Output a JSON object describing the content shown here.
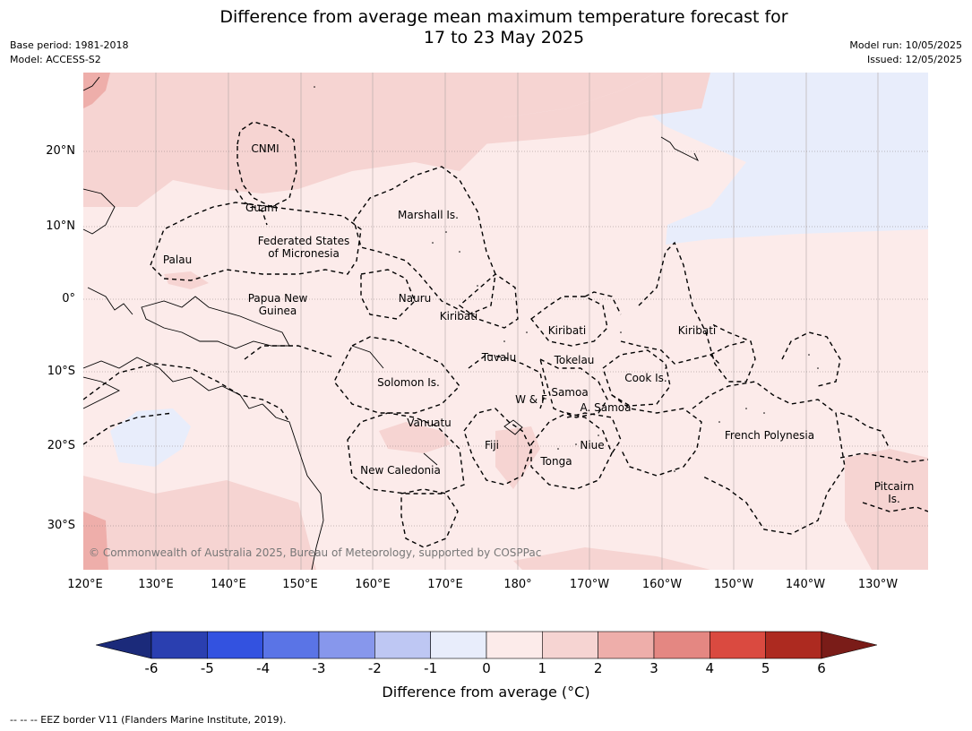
{
  "title": {
    "line1": "Difference from average mean maximum temperature forecast for",
    "line2": "17 to 23 May 2025"
  },
  "meta": {
    "base_period": "Base period: 1981-2018",
    "model": "Model: ACCESS-S2",
    "model_run": "Model run: 10/05/2025",
    "issued": "Issued: 12/05/2025"
  },
  "lat_ticks": [
    "20°N",
    "10°N",
    "0°",
    "10°S",
    "20°S",
    "30°S"
  ],
  "lon_ticks": [
    "120°E",
    "130°E",
    "140°E",
    "150°E",
    "160°E",
    "170°E",
    "180°",
    "170°W",
    "160°W",
    "150°W",
    "140°W",
    "130°W"
  ],
  "regions": {
    "cnmi": "CNMI",
    "guam": "Guam",
    "marshall": "Marshall Is.",
    "fsm_line1": "Federated States",
    "fsm_line2": "of Micronesia",
    "palau": "Palau",
    "png_line1": "Papua New",
    "png_line2": "Guinea",
    "nauru": "Nauru",
    "kiribati_w": "Kiribati",
    "kiribati_c": "Kiribati",
    "kiribati_e": "Kiribati",
    "tuvalu": "Tuvalu",
    "tokelau": "Tokelau",
    "solomon": "Solomon Is.",
    "wf": "W & F",
    "samoa": "Samoa",
    "asamoa": "A. Samoa",
    "cook": "Cook Is.",
    "vanuatu": "Vanuatu",
    "fiji": "Fiji",
    "niue": "Niue",
    "tonga": "Tonga",
    "french_polynesia": "French Polynesia",
    "new_caledonia": "New Caledonia",
    "pitcairn_line1": "Pitcairn",
    "pitcairn_line2": "Is."
  },
  "copyright": "© Commonwealth of Australia 2025, Bureau of Meteorology, supported by COSPPac",
  "colorbar": {
    "title": "Difference from average (°C)",
    "labels": [
      "-6",
      "-5",
      "-4",
      "-3",
      "-2",
      "-1",
      "0",
      "1",
      "2",
      "3",
      "4",
      "5",
      "6"
    ],
    "colors": {
      "below_min": "#1b2a7a",
      "bins": [
        "#2a3fb0",
        "#3352e0",
        "#5a74e6",
        "#8797ec",
        "#bec7f3",
        "#e8edfb",
        "#fcebea",
        "#f6d4d2",
        "#eeaeaa",
        "#e48782",
        "#da4a40",
        "#ad2a20"
      ],
      "above_max": "#7a1c18"
    }
  },
  "legend_note": "--  --  -- EEZ border V11 (Flanders Marine Institute, 2019).",
  "map_values": {
    "dominant_anomaly": "0 to 1",
    "regional_anomalies": [
      {
        "area": "northeast Pacific",
        "range": "-1 to 0"
      },
      {
        "area": "inland eastern Australia",
        "range": "-1 to 0"
      },
      {
        "area": "northwest Pacific",
        "range": "1 to 2"
      },
      {
        "area": "southwestern corner",
        "range": "2 to 3"
      }
    ]
  }
}
